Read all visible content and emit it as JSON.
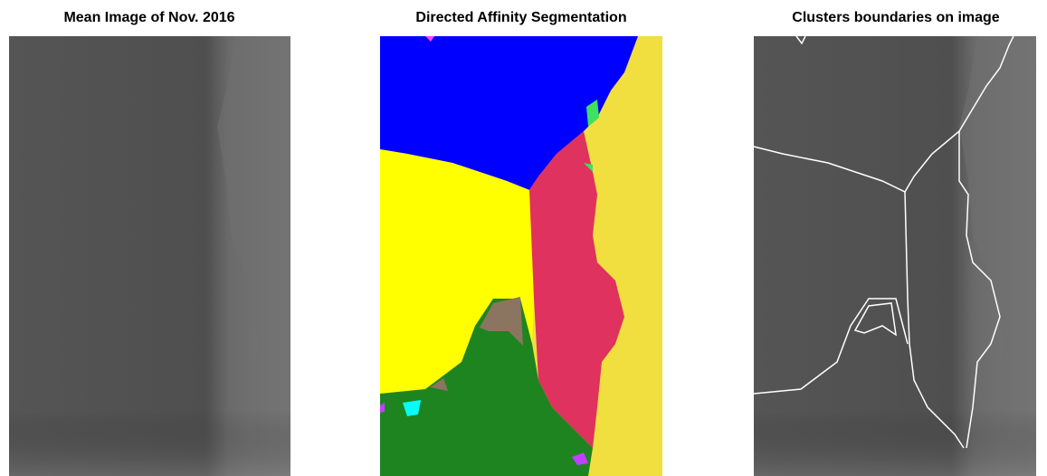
{
  "panels": [
    {
      "title": "Mean Image of Nov. 2016"
    },
    {
      "title": "Directed Affinity Segmentation"
    },
    {
      "title": "Clusters boundaries on image"
    }
  ]
}
